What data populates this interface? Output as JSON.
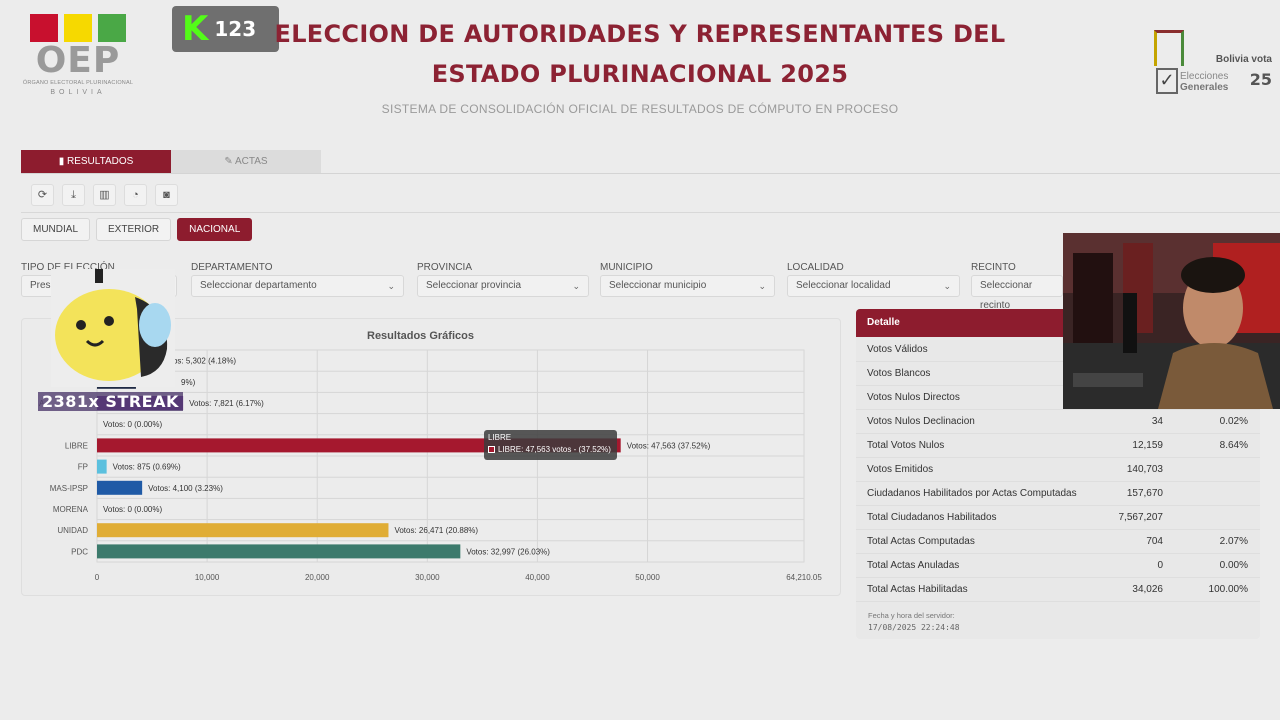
{
  "logo": {
    "name": "OEP",
    "subtitle": "ÓRGANO ELECTORAL PLURINACIONAL",
    "country": "BOLIVIA",
    "colors": [
      "#c8102e",
      "#f6d900",
      "#4aa846"
    ]
  },
  "stream": {
    "badge_letter": "K",
    "badge_count": "123",
    "streak_text": "2381x STREAK"
  },
  "header": {
    "title": "ELECCION DE AUTORIDADES Y REPRESENTANTES DEL ESTADO PLURINACIONAL 2025",
    "subtitle": "SISTEMA DE CONSOLIDACIÓN OFICIAL DE RESULTADOS DE CÓMPUTO EN PROCESO"
  },
  "brand": {
    "line1": "Bolivia vota",
    "line2a": "Elecciones",
    "line2b": "Generales",
    "year": "25"
  },
  "tabs": [
    {
      "label": "RESULTADOS",
      "icon": "bar-chart-icon",
      "active": true
    },
    {
      "label": "ACTAS",
      "icon": "pencil-icon",
      "active": false
    }
  ],
  "toolbar": [
    "refresh-icon",
    "download-icon",
    "bar-chart-icon",
    "pie-chart-icon",
    "camera-icon"
  ],
  "scope": {
    "mundial": "MUNDIAL",
    "exterior": "EXTERIOR",
    "nacional": "NACIONAL"
  },
  "filters": {
    "tipo": {
      "label": "TIPO DE ELECCIÓN",
      "value": "Presidente"
    },
    "departamento": {
      "label": "DEPARTAMENTO",
      "value": "Seleccionar departamento"
    },
    "provincia": {
      "label": "PROVINCIA",
      "value": "Seleccionar provincia"
    },
    "municipio": {
      "label": "MUNICIPIO",
      "value": "Seleccionar municipio"
    },
    "localidad": {
      "label": "LOCALIDAD",
      "value": "Seleccionar localidad"
    },
    "recinto": {
      "label": "RECINTO",
      "value": "Seleccionar recinto"
    }
  },
  "chart_data": {
    "type": "bar",
    "orientation": "horizontal",
    "title": "Resultados Gráficos",
    "categories": [
      "",
      "",
      "",
      "",
      "LIBRE",
      "FP",
      "MAS-IPSP",
      "MORENA",
      "UNIDAD",
      "PDC"
    ],
    "values": [
      5302,
      3537,
      7821,
      0,
      47563,
      875,
      4100,
      0,
      26471,
      32997
    ],
    "percents": [
      "4.18%",
      "2.79%",
      "6.17%",
      "0.00%",
      "37.52%",
      "0.69%",
      "3.23%",
      "0.00%",
      "20.88%",
      "26.03%"
    ],
    "labels": [
      "Votos: 5,302 (4.18%)",
      "",
      "Votos: 7,821 (6.17%)",
      "Votos: 0 (0.00%)",
      "Votos: 47,563 (37.52%)",
      "Votos: 875 (0.69%)",
      "Votos: 4,100 (3.23%)",
      "Votos: 0 (0.00%)",
      "Votos: 26,471 (20.88%)",
      "Votos: 32,997 (26.03%)"
    ],
    "colors": [
      "#3a3a3a",
      "#1f2a44",
      "#6b2b8f",
      "#cccccc",
      "#a5182e",
      "#5bc0de",
      "#1f5aa6",
      "#888888",
      "#e0ad35",
      "#3c7a6c"
    ],
    "xticks": [
      "0",
      "10,000",
      "20,000",
      "30,000",
      "40,000",
      "50,000",
      "64,210.05"
    ],
    "xlim": [
      0,
      64210.05
    ],
    "grid": true,
    "partial_labels": [
      "L",
      "A",
      "9%)"
    ]
  },
  "tooltip": {
    "title": "LIBRE",
    "text": "LIBRE: 47,563 votos - (37.52%)"
  },
  "detail": {
    "title": "Detalle",
    "rows": [
      {
        "label": "Votos Válidos",
        "value": "",
        "pct": ""
      },
      {
        "label": "Votos Blancos",
        "value": "",
        "pct": ""
      },
      {
        "label": "Votos Nulos Directos",
        "value": "",
        "pct": ""
      },
      {
        "label": "Votos Nulos Declinacion",
        "value": "34",
        "pct": "0.02%"
      },
      {
        "label": "Total Votos Nulos",
        "value": "12,159",
        "pct": "8.64%"
      },
      {
        "label": "Votos Emitidos",
        "value": "140,703",
        "pct": ""
      },
      {
        "label": "Ciudadanos Habilitados por Actas Computadas",
        "value": "157,670",
        "pct": ""
      },
      {
        "label": "Total Ciudadanos Habilitados",
        "value": "7,567,207",
        "pct": ""
      },
      {
        "label": "Total Actas Computadas",
        "value": "704",
        "pct": "2.07%"
      },
      {
        "label": "Total Actas Anuladas",
        "value": "0",
        "pct": "0.00%"
      },
      {
        "label": "Total Actas Habilitadas",
        "value": "34,026",
        "pct": "100.00%"
      }
    ],
    "server_label": "Fecha y hora del servidor:",
    "server_time": "17/08/2025 22:24:48"
  }
}
